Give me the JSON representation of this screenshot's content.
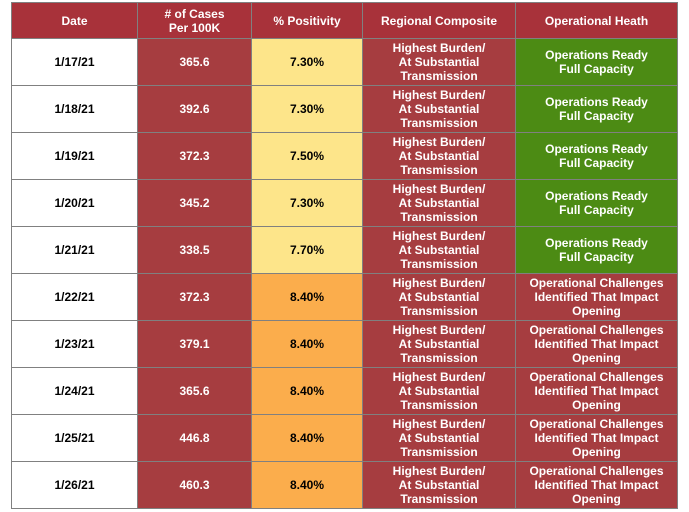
{
  "table": {
    "headers": {
      "date": "Date",
      "cases": [
        "# of Cases",
        "Per 100K"
      ],
      "positivity": "% Positivity",
      "regional": "Regional Composite",
      "operational": "Operational Heath"
    },
    "colors": {
      "header_bg": "#a8323a",
      "burden_red": "#a63d40",
      "positivity_yellow": "#fde58a",
      "positivity_orange": "#fbad4c",
      "ready_green": "#4c8b14"
    },
    "rows": [
      {
        "date": "1/17/21",
        "cases": "365.6",
        "positivity": "7.30%",
        "positivity_level": "low",
        "regional": [
          "Highest Burden/",
          "At Substantial",
          "Transmission"
        ],
        "operational": [
          "Operations Ready",
          "Full Capacity"
        ],
        "operational_status": "ready"
      },
      {
        "date": "1/18/21",
        "cases": "392.6",
        "positivity": "7.30%",
        "positivity_level": "low",
        "regional": [
          "Highest Burden/",
          "At Substantial",
          "Transmission"
        ],
        "operational": [
          "Operations Ready",
          "Full Capacity"
        ],
        "operational_status": "ready"
      },
      {
        "date": "1/19/21",
        "cases": "372.3",
        "positivity": "7.50%",
        "positivity_level": "low",
        "regional": [
          "Highest Burden/",
          "At Substantial",
          "Transmission"
        ],
        "operational": [
          "Operations Ready",
          "Full Capacity"
        ],
        "operational_status": "ready"
      },
      {
        "date": "1/20/21",
        "cases": "345.2",
        "positivity": "7.30%",
        "positivity_level": "low",
        "regional": [
          "Highest Burden/",
          "At Substantial",
          "Transmission"
        ],
        "operational": [
          "Operations Ready",
          "Full Capacity"
        ],
        "operational_status": "ready"
      },
      {
        "date": "1/21/21",
        "cases": "338.5",
        "positivity": "7.70%",
        "positivity_level": "low",
        "regional": [
          "Highest Burden/",
          "At Substantial",
          "Transmission"
        ],
        "operational": [
          "Operations Ready",
          "Full Capacity"
        ],
        "operational_status": "ready"
      },
      {
        "date": "1/22/21",
        "cases": "372.3",
        "positivity": "8.40%",
        "positivity_level": "high",
        "regional": [
          "Highest Burden/",
          "At Substantial",
          "Transmission"
        ],
        "operational": [
          "Operational Challenges",
          "Identified That Impact",
          "Opening"
        ],
        "operational_status": "challenge"
      },
      {
        "date": "1/23/21",
        "cases": "379.1",
        "positivity": "8.40%",
        "positivity_level": "high",
        "regional": [
          "Highest Burden/",
          "At Substantial",
          "Transmission"
        ],
        "operational": [
          "Operational Challenges",
          "Identified That Impact",
          "Opening"
        ],
        "operational_status": "challenge"
      },
      {
        "date": "1/24/21",
        "cases": "365.6",
        "positivity": "8.40%",
        "positivity_level": "high",
        "regional": [
          "Highest Burden/",
          "At Substantial",
          "Transmission"
        ],
        "operational": [
          "Operational Challenges",
          "Identified That Impact",
          "Opening"
        ],
        "operational_status": "challenge"
      },
      {
        "date": "1/25/21",
        "cases": "446.8",
        "positivity": "8.40%",
        "positivity_level": "high",
        "regional": [
          "Highest Burden/",
          "At Substantial",
          "Transmission"
        ],
        "operational": [
          "Operational Challenges",
          "Identified That Impact",
          "Opening"
        ],
        "operational_status": "challenge"
      },
      {
        "date": "1/26/21",
        "cases": "460.3",
        "positivity": "8.40%",
        "positivity_level": "high",
        "regional": [
          "Highest Burden/",
          "At Substantial",
          "Transmission"
        ],
        "operational": [
          "Operational Challenges",
          "Identified That Impact",
          "Opening"
        ],
        "operational_status": "challenge"
      }
    ]
  }
}
